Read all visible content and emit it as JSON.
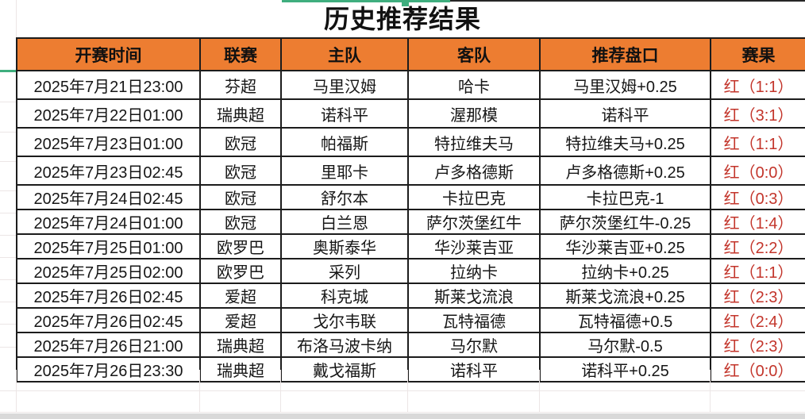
{
  "title": "历史推荐结果",
  "colors": {
    "header_bg": "#ED7D31",
    "result_red": "#C3352B",
    "accent_green": "#3FAE7E"
  },
  "table": {
    "columns": [
      {
        "key": "time",
        "label": "开赛时间"
      },
      {
        "key": "league",
        "label": "联赛"
      },
      {
        "key": "home",
        "label": "主队"
      },
      {
        "key": "away",
        "label": "客队"
      },
      {
        "key": "handicap",
        "label": "推荐盘口"
      },
      {
        "key": "result",
        "label": "赛果"
      }
    ],
    "rows": [
      {
        "time": "2025年7月21日23:00",
        "league": "芬超",
        "home": "马里汉姆",
        "away": "哈卡",
        "handicap": "马里汉姆+0.25",
        "result": "红（1:1）"
      },
      {
        "time": "2025年7月22日01:00",
        "league": "瑞典超",
        "home": "诺科平",
        "away": "渥那模",
        "handicap": "诺科平",
        "result": "红（3:1）"
      },
      {
        "time": "2025年7月23日01:00",
        "league": "欧冠",
        "home": "帕福斯",
        "away": "特拉维夫马",
        "handicap": "特拉维夫马+0.25",
        "result": "红（1:1）"
      },
      {
        "time": "2025年7月23日02:45",
        "league": "欧冠",
        "home": "里耶卡",
        "away": "卢多格德斯",
        "handicap": "卢多格德斯+0.25",
        "result": "红（0:0）"
      },
      {
        "time": "2025年7月24日02:45",
        "league": "欧冠",
        "home": "舒尔本",
        "away": "卡拉巴克",
        "handicap": "卡拉巴克-1",
        "result": "红（0:3）"
      },
      {
        "time": "2025年7月24日01:00",
        "league": "欧冠",
        "home": "白兰恩",
        "away": "萨尔茨堡红牛",
        "handicap": "萨尔茨堡红牛-0.25",
        "result": "红（1:4）"
      },
      {
        "time": "2025年7月25日01:00",
        "league": "欧罗巴",
        "home": "奥斯泰华",
        "away": "华沙莱吉亚",
        "handicap": "华沙莱吉亚+0.25",
        "result": "红（2:2）"
      },
      {
        "time": "2025年7月25日02:00",
        "league": "欧罗巴",
        "home": "采列",
        "away": "拉纳卡",
        "handicap": "拉纳卡+0.25",
        "result": "红（1:1）"
      },
      {
        "time": "2025年7月26日02:45",
        "league": "爱超",
        "home": "科克城",
        "away": "斯莱戈流浪",
        "handicap": "斯莱戈流浪+0.25",
        "result": "红（2:3）"
      },
      {
        "time": "2025年7月26日02:45",
        "league": "爱超",
        "home": "戈尔韦联",
        "away": "瓦特福德",
        "handicap": "瓦特福德+0.5",
        "result": "红（2:4）"
      },
      {
        "time": "2025年7月26日21:00",
        "league": "瑞典超",
        "home": "布洛马波卡纳",
        "away": "马尔默",
        "handicap": "马尔默-0.5",
        "result": "红（2:3）"
      },
      {
        "time": "2025年7月26日23:30",
        "league": "瑞典超",
        "home": "戴戈福斯",
        "away": "诺科平",
        "handicap": "诺科平+0.25",
        "result": "红（0:0）"
      }
    ]
  }
}
